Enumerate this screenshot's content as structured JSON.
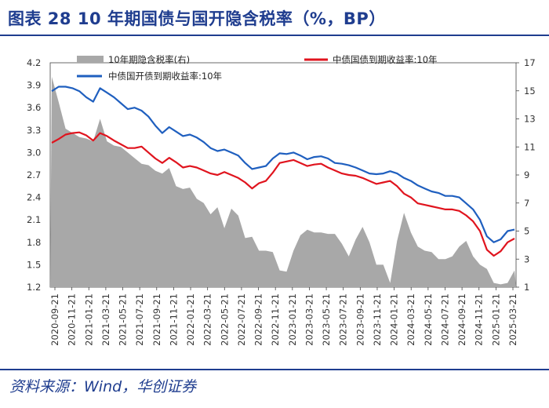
{
  "header": {
    "figure_title": "图表 28    10 年期国债与国开隐含税率（%，BP）"
  },
  "source": {
    "text": "资料来源：Wind，华创证券"
  },
  "colors": {
    "title_blue": "#1f3d8f",
    "cdb_blue": "#1f5fbf",
    "gov_red": "#e0141e",
    "tax_gray": "#a8a8a8"
  },
  "chart_data": {
    "type": "line+area",
    "title": "10 年期国债与国开隐含税率（%，BP）",
    "left_axis": {
      "min": 1.2,
      "max": 4.2,
      "ticks": [
        "4.2",
        "3.9",
        "3.6",
        "3.3",
        "3.0",
        "2.7",
        "2.4",
        "2.1",
        "1.8",
        "1.5",
        "1.2"
      ]
    },
    "right_axis": {
      "min": 1,
      "max": 17,
      "ticks": [
        "17",
        "15",
        "13",
        "11",
        "9",
        "7",
        "5",
        "3",
        "1"
      ]
    },
    "x_labels": [
      "2020-09-21",
      "2020-11-21",
      "2021-01-21",
      "2021-03-21",
      "2021-05-21",
      "2021-07-21",
      "2021-09-21",
      "2021-11-21",
      "2022-01-21",
      "2022-03-21",
      "2022-05-21",
      "2022-07-21",
      "2022-09-21",
      "2022-11-21",
      "2023-01-21",
      "2023-03-21",
      "2023-05-21",
      "2023-07-21",
      "2023-09-21",
      "2023-11-21",
      "2024-01-21",
      "2024-03-21",
      "2024-05-21",
      "2024-07-21",
      "2024-09-21",
      "2024-11-21",
      "2025-01-21",
      "2025-03-21"
    ],
    "legend": [
      {
        "name": "10年期隐含税率(右)",
        "kind": "area",
        "axis": "right"
      },
      {
        "name": "中债国债到期收益率:10年",
        "kind": "line",
        "axis": "left"
      },
      {
        "name": "中债国开债到期收益率:10年",
        "kind": "line",
        "axis": "left"
      }
    ],
    "series": [
      {
        "name": "中债国开债到期收益率:10年",
        "values": [
          3.82,
          3.88,
          3.88,
          3.86,
          3.82,
          3.74,
          3.68,
          3.86,
          3.8,
          3.74,
          3.66,
          3.58,
          3.6,
          3.56,
          3.48,
          3.36,
          3.26,
          3.34,
          3.28,
          3.22,
          3.24,
          3.2,
          3.14,
          3.06,
          3.02,
          3.04,
          3.0,
          2.96,
          2.86,
          2.78,
          2.8,
          2.82,
          2.92,
          2.99,
          2.98,
          3.0,
          2.96,
          2.91,
          2.94,
          2.95,
          2.92,
          2.86,
          2.85,
          2.83,
          2.8,
          2.76,
          2.72,
          2.71,
          2.72,
          2.75,
          2.72,
          2.66,
          2.62,
          2.56,
          2.52,
          2.48,
          2.46,
          2.42,
          2.42,
          2.4,
          2.32,
          2.24,
          2.1,
          1.88,
          1.8,
          1.84,
          1.95,
          1.97
        ]
      },
      {
        "name": "中债国债到期收益率:10年",
        "values": [
          3.13,
          3.18,
          3.24,
          3.26,
          3.27,
          3.23,
          3.16,
          3.26,
          3.22,
          3.16,
          3.11,
          3.06,
          3.06,
          3.08,
          3.0,
          2.92,
          2.86,
          2.93,
          2.87,
          2.8,
          2.82,
          2.8,
          2.76,
          2.72,
          2.7,
          2.74,
          2.7,
          2.66,
          2.6,
          2.52,
          2.59,
          2.62,
          2.73,
          2.86,
          2.88,
          2.9,
          2.86,
          2.82,
          2.84,
          2.85,
          2.8,
          2.76,
          2.72,
          2.7,
          2.69,
          2.66,
          2.62,
          2.58,
          2.6,
          2.62,
          2.55,
          2.45,
          2.4,
          2.32,
          2.3,
          2.28,
          2.26,
          2.24,
          2.24,
          2.22,
          2.16,
          2.08,
          1.95,
          1.7,
          1.62,
          1.68,
          1.8,
          1.85
        ]
      },
      {
        "name": "10年期隐含税率(右)",
        "values": [
          16.0,
          14.2,
          12.3,
          12.0,
          11.7,
          11.6,
          11.4,
          13.0,
          11.4,
          11.1,
          11.0,
          10.6,
          10.2,
          9.8,
          9.7,
          9.3,
          9.1,
          9.5,
          8.2,
          8.0,
          8.1,
          7.3,
          7.0,
          6.2,
          6.7,
          5.2,
          6.6,
          6.1,
          4.5,
          4.6,
          3.6,
          3.6,
          3.5,
          2.2,
          2.1,
          3.6,
          4.7,
          5.1,
          4.9,
          4.9,
          4.8,
          4.8,
          4.1,
          3.2,
          4.4,
          5.3,
          4.2,
          2.6,
          2.6,
          1.3,
          4.3,
          6.3,
          4.9,
          3.9,
          3.6,
          3.5,
          3.0,
          3.0,
          3.2,
          3.9,
          4.3,
          3.2,
          2.6,
          2.3,
          1.3,
          1.2,
          1.3,
          2.2
        ]
      }
    ]
  }
}
